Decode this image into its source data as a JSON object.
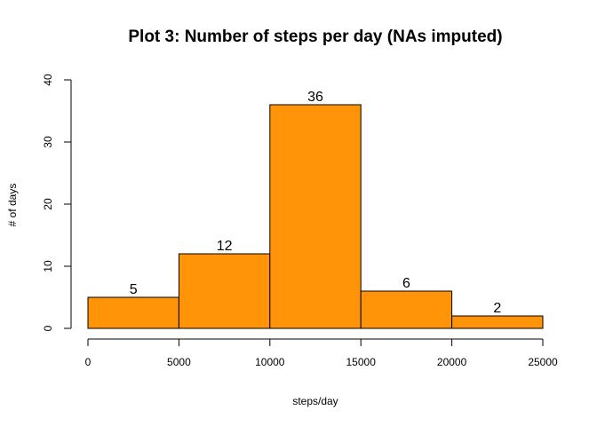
{
  "chart_data": {
    "type": "bar",
    "title": "Plot 3: Number of steps per day (NAs imputed)",
    "xlabel": "steps/day",
    "ylabel": "# of days",
    "bins": [
      {
        "from": 0,
        "to": 5000,
        "value": 5
      },
      {
        "from": 5000,
        "to": 10000,
        "value": 12
      },
      {
        "from": 10000,
        "to": 15000,
        "value": 36
      },
      {
        "from": 15000,
        "to": 20000,
        "value": 6
      },
      {
        "from": 20000,
        "to": 25000,
        "value": 2
      }
    ],
    "data_labels": [
      "5",
      "12",
      "36",
      "6",
      "2"
    ],
    "xticks": [
      0,
      5000,
      10000,
      15000,
      20000,
      25000
    ],
    "xtick_labels": [
      "0",
      "5000",
      "10000",
      "15000",
      "20000",
      "25000"
    ],
    "yticks": [
      0,
      10,
      20,
      30,
      40
    ],
    "ytick_labels": [
      "0",
      "10",
      "20",
      "30",
      "40"
    ],
    "xlim": [
      0,
      25000
    ],
    "ylim": [
      0,
      40
    ],
    "grid": false,
    "bar_color": "#FF9409",
    "border_color": "#000000"
  }
}
